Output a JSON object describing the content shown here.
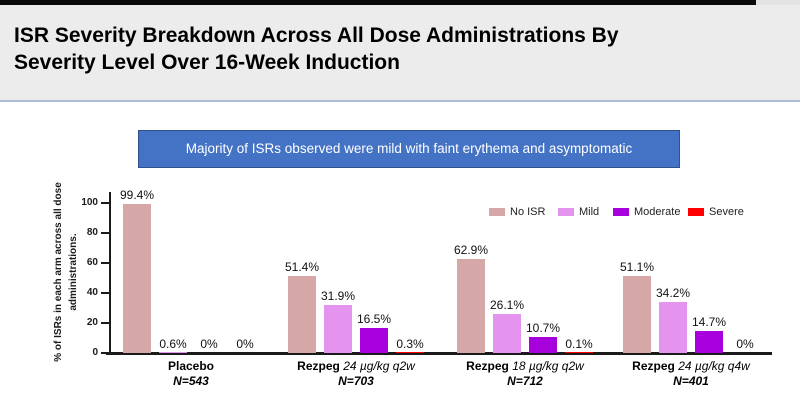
{
  "slide": {
    "title_lines": [
      "ISR Severity Breakdown Across All Dose Administrations By",
      "Severity Level Over 16-Week Induction"
    ],
    "callout": "Majority of ISRs observed were mild with faint erythema and asymptomatic"
  },
  "colors": {
    "top_bar": "#0a0a0a",
    "header_bg": "#ececec",
    "header_divider": "#aebdd7",
    "callout_bg": "#4472c4",
    "callout_border": "#2f528f",
    "callout_text": "#ffffff"
  },
  "chart_data": {
    "type": "bar",
    "title": "",
    "xlabel": "",
    "ylabel": "% of ISRs in each arm across all dose administrations.",
    "ylabel_lines": [
      "% of ISRs in each arm across all dose",
      "administrations."
    ],
    "ylim": [
      0,
      100
    ],
    "yticks": [
      0,
      20,
      40,
      60,
      80,
      100
    ],
    "grid": false,
    "legend_position": "top-right-inside",
    "categories": [
      {
        "name": "Placebo",
        "dose": "",
        "n": "N=543"
      },
      {
        "name": "Rezpeg",
        "dose": "24 µg/kg q2w",
        "n": "N=703"
      },
      {
        "name": "Rezpeg",
        "dose": "18 µg/kg q2w",
        "n": "N=712"
      },
      {
        "name": "Rezpeg",
        "dose": "24 µg/kg q4w",
        "n": "N=401"
      }
    ],
    "series": [
      {
        "name": "No ISR",
        "color": "#d5a7a7",
        "values": [
          99.4,
          51.4,
          62.9,
          51.1
        ],
        "labels": [
          "99.4%",
          "51.4%",
          "62.9%",
          "51.1%"
        ]
      },
      {
        "name": "Mild",
        "color": "#e493ef",
        "values": [
          0.6,
          31.9,
          26.1,
          34.2
        ],
        "labels": [
          "0.6%",
          "31.9%",
          "26.1%",
          "34.2%"
        ]
      },
      {
        "name": "Moderate",
        "color": "#a800dc",
        "values": [
          0,
          16.5,
          10.7,
          14.7
        ],
        "labels": [
          "0%",
          "16.5%",
          "10.7%",
          "14.7%"
        ]
      },
      {
        "name": "Severe",
        "color": "#ff0000",
        "values": [
          0,
          0.3,
          0.1,
          0
        ],
        "labels": [
          "0%",
          "0.3%",
          "0.1%",
          "0%"
        ]
      }
    ]
  }
}
